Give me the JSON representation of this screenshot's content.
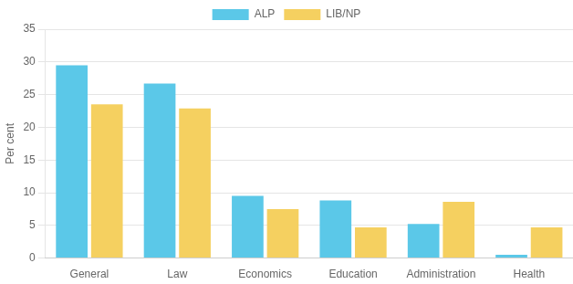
{
  "chart_data": {
    "type": "bar",
    "ylabel": "Per cent",
    "categories": [
      "General",
      "Law",
      "Economics",
      "Education",
      "Administration",
      "Health"
    ],
    "series": [
      {
        "name": "ALP",
        "color": "#5BC8E8",
        "values": [
          29.5,
          26.7,
          9.5,
          8.8,
          5.2,
          0.5
        ]
      },
      {
        "name": "LIB/NP",
        "color": "#F5D060",
        "values": [
          23.5,
          22.9,
          7.5,
          4.7,
          8.6,
          4.7
        ]
      }
    ],
    "ylim": [
      0,
      35
    ],
    "yticks": [
      0,
      5,
      10,
      15,
      20,
      25,
      30,
      35
    ],
    "grid": true,
    "legend": "top"
  }
}
